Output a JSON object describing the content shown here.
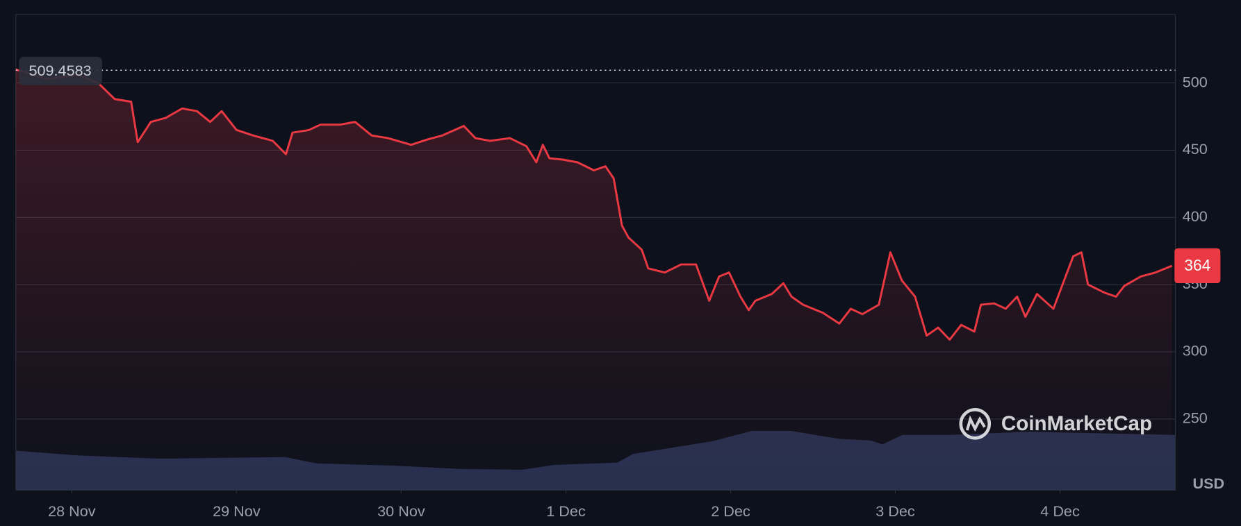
{
  "chart_data": {
    "type": "line",
    "x": [
      -0.34,
      -0.15,
      0.04,
      0.16,
      0.26,
      0.36,
      0.4,
      0.48,
      0.57,
      0.67,
      0.76,
      0.84,
      0.91,
      1.0,
      1.1,
      1.22,
      1.3,
      1.34,
      1.44,
      1.51,
      1.63,
      1.72,
      1.82,
      1.92,
      2.06,
      2.16,
      2.25,
      2.38,
      2.45,
      2.54,
      2.66,
      2.76,
      2.82,
      2.86,
      2.9,
      2.98,
      3.07,
      3.17,
      3.24,
      3.29,
      3.34,
      3.38,
      3.46,
      3.5,
      3.6,
      3.7,
      3.79,
      3.87,
      3.93,
      3.99,
      4.06,
      4.11,
      4.15,
      4.25,
      4.32,
      4.37,
      4.44,
      4.56,
      4.66,
      4.73,
      4.8,
      4.9,
      4.97,
      5.04,
      5.12,
      5.19,
      5.26,
      5.33,
      5.4,
      5.48,
      5.52,
      5.6,
      5.67,
      5.74,
      5.79,
      5.86,
      5.96,
      6.0,
      6.08,
      6.13,
      6.17,
      6.27,
      6.34,
      6.39,
      6.49,
      6.58,
      6.68
    ],
    "series": [
      {
        "color": "#ea3943",
        "values": [
          510,
          503,
          506,
          500,
          488,
          486,
          456,
          471,
          474,
          481,
          479,
          471,
          479,
          465,
          461,
          457,
          447,
          463,
          465,
          469,
          469,
          471,
          461,
          459,
          454,
          458,
          461,
          468,
          459,
          457,
          459,
          453,
          441,
          454,
          444,
          443,
          441,
          435,
          438,
          429,
          394,
          385,
          376,
          362,
          359,
          365,
          365,
          338,
          356,
          359,
          341,
          331,
          338,
          343,
          351,
          341,
          335,
          329,
          321,
          332,
          328,
          335,
          374,
          353,
          341,
          312,
          318,
          309,
          320,
          315,
          335,
          336,
          332,
          341,
          326,
          343,
          332,
          345,
          371,
          374,
          350,
          344,
          341,
          349,
          356,
          359,
          364
        ]
      }
    ],
    "xlim": [
      -0.34,
      6.7
    ],
    "xticks": [
      {
        "value": 0,
        "label": "28 Nov"
      },
      {
        "value": 1,
        "label": "29 Nov"
      },
      {
        "value": 2,
        "label": "30 Nov"
      },
      {
        "value": 3,
        "label": "1 Dec"
      },
      {
        "value": 4,
        "label": "2 Dec"
      },
      {
        "value": 5,
        "label": "3 Dec"
      },
      {
        "value": 6,
        "label": "4 Dec"
      }
    ],
    "ylim": [
      197,
      551
    ],
    "yticks": [
      250,
      300,
      350,
      400,
      450,
      500
    ],
    "grid": true,
    "reference_value": 509.4583,
    "current_price": 364,
    "currency": "USD",
    "watermark": "CoinMarketCap"
  }
}
